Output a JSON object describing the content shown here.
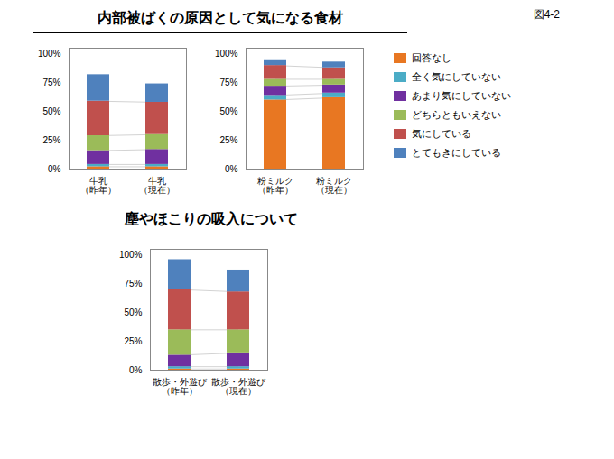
{
  "annotations": [
    "図4-2"
  ],
  "chart_data": [
    {
      "type": "bar",
      "title": "内部被ばくの原因として気になる食材",
      "categories": [
        "牛乳\n（昨年）",
        "牛乳\n（現在）"
      ],
      "series": [
        {
          "name": "回答なし",
          "color": "#E87722",
          "values": [
            2,
            2
          ]
        },
        {
          "name": "全く気にしていない",
          "color": "#4BACC6",
          "values": [
            2,
            2
          ]
        },
        {
          "name": "あまり気にしていない",
          "color": "#7030A0",
          "values": [
            12,
            13
          ]
        },
        {
          "name": "どちらともいえない",
          "color": "#9BBB59",
          "values": [
            13,
            13
          ]
        },
        {
          "name": "気にしている",
          "color": "#C0504D",
          "values": [
            30,
            28
          ]
        },
        {
          "name": "とてもきにしている",
          "color": "#4F81BD",
          "values": [
            23,
            16
          ]
        }
      ],
      "stacked": true,
      "ylim": [
        0,
        105
      ],
      "yticks": [
        {
          "value": 0,
          "label": "0%"
        },
        {
          "value": 25,
          "label": "25%"
        },
        {
          "value": 50,
          "label": "50%"
        },
        {
          "value": 75,
          "label": "75%"
        },
        {
          "value": 100,
          "label": "100%"
        }
      ],
      "grid": false,
      "legend": "right"
    },
    {
      "type": "bar",
      "title": "内部被ばくの原因として気になる食材",
      "categories": [
        "粉ミルク\n（昨年）",
        "粉ミルク\n（現在）"
      ],
      "series": [
        {
          "name": "回答なし",
          "color": "#E87722",
          "values": [
            60,
            62
          ]
        },
        {
          "name": "全く気にしていない",
          "color": "#4BACC6",
          "values": [
            4,
            4
          ]
        },
        {
          "name": "あまり気にしていない",
          "color": "#7030A0",
          "values": [
            8,
            7
          ]
        },
        {
          "name": "どちらともいえない",
          "color": "#9BBB59",
          "values": [
            6,
            5
          ]
        },
        {
          "name": "気にしている",
          "color": "#C0504D",
          "values": [
            12,
            10
          ]
        },
        {
          "name": "とてもきにしている",
          "color": "#4F81BD",
          "values": [
            5,
            5
          ]
        }
      ],
      "stacked": true,
      "ylim": [
        0,
        105
      ],
      "yticks": [
        {
          "value": 0,
          "label": "0%"
        },
        {
          "value": 25,
          "label": "25%"
        },
        {
          "value": 50,
          "label": "50%"
        },
        {
          "value": 75,
          "label": "75%"
        },
        {
          "value": 100,
          "label": "100%"
        }
      ],
      "grid": false
    },
    {
      "type": "bar",
      "title": "塵やほこりの吸入について",
      "categories": [
        "散歩・外遊び\n（昨年）",
        "散歩・外遊び\n（現在）"
      ],
      "series": [
        {
          "name": "回答なし",
          "color": "#E87722",
          "values": [
            1,
            1
          ]
        },
        {
          "name": "全く気にしていない",
          "color": "#4BACC6",
          "values": [
            2,
            2
          ]
        },
        {
          "name": "あまり気にしていない",
          "color": "#7030A0",
          "values": [
            10,
            12
          ]
        },
        {
          "name": "どちらともいえない",
          "color": "#9BBB59",
          "values": [
            22,
            20
          ]
        },
        {
          "name": "気にしている",
          "color": "#C0504D",
          "values": [
            35,
            33
          ]
        },
        {
          "name": "とてもきにしている",
          "color": "#4F81BD",
          "values": [
            26,
            19
          ]
        }
      ],
      "stacked": true,
      "ylim": [
        0,
        105
      ],
      "yticks": [
        {
          "value": 0,
          "label": "0%"
        },
        {
          "value": 25,
          "label": "25%"
        },
        {
          "value": 50,
          "label": "50%"
        },
        {
          "value": 75,
          "label": "75%"
        },
        {
          "value": 100,
          "label": "100%"
        }
      ],
      "grid": false
    }
  ]
}
